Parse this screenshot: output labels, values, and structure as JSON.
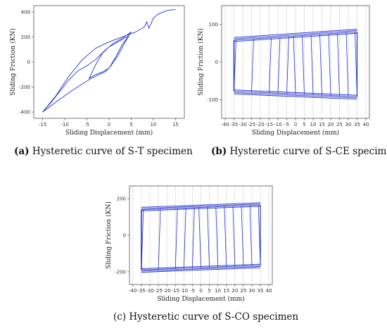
{
  "captions": [
    {
      "letter": "(a)",
      "text": " Hysteretic curve of S-T specimen"
    },
    {
      "letter": "(b)",
      "text": " Hysteretic curve of S-CE specimen."
    },
    {
      "letter": "",
      "text": "(c) Hysteretic curve of S-CO specimen"
    }
  ],
  "series_color": "#2233cc",
  "chart_data": [
    {
      "type": "line",
      "xlabel": "Sliding Displacement (mm)",
      "ylabel": "Sliding Friction (KN)",
      "xlim": [
        -17,
        17
      ],
      "ylim": [
        -450,
        450
      ],
      "xticks": [
        -15,
        -10,
        -5,
        0,
        5,
        10,
        15
      ],
      "yticks": [
        -400,
        -200,
        0,
        200,
        400
      ],
      "grid": false,
      "series": [
        {
          "x": [
            -15,
            -13,
            -11,
            -9,
            -7,
            -5,
            -3,
            -1,
            1,
            3,
            5,
            3.5,
            2,
            0,
            -1.5,
            -3,
            -4.5,
            -3,
            -1.5,
            0,
            1.5,
            3,
            4.5,
            3,
            1.5,
            0,
            -1,
            -4,
            -8,
            -12,
            -15
          ],
          "y": [
            -400,
            -320,
            -230,
            -140,
            -70,
            -30,
            20,
            90,
            150,
            190,
            240,
            150,
            50,
            -50,
            -80,
            -100,
            -130,
            -20,
            70,
            120,
            150,
            180,
            210,
            140,
            40,
            -50,
            -80,
            -130,
            -220,
            -320,
            -400
          ]
        },
        {
          "x": [
            -15,
            -12,
            -9,
            -6,
            -3,
            0,
            3,
            6,
            8,
            8.5,
            9,
            10,
            11,
            13,
            15
          ],
          "y": [
            -400,
            -270,
            -110,
            20,
            110,
            160,
            200,
            240,
            280,
            320,
            270,
            350,
            380,
            410,
            420
          ]
        }
      ]
    },
    {
      "type": "line",
      "xlabel": "Sliding Displacement (mm)",
      "ylabel": "Sliding Friction (KN)",
      "xlim": [
        -42,
        42
      ],
      "ylim": [
        -150,
        150
      ],
      "xticks": [
        -40,
        -35,
        -30,
        -25,
        -20,
        -15,
        -10,
        -5,
        0,
        5,
        10,
        15,
        20,
        25,
        30,
        35,
        40
      ],
      "yticks": [
        -100,
        0,
        100
      ],
      "grid": true,
      "reversals": [
        -35,
        -25,
        -15,
        -10,
        -5,
        0,
        5,
        10,
        15,
        20,
        25,
        30,
        35
      ],
      "upper_branch": {
        "x": [
          -35,
          35
        ],
        "y": [
          58,
          80
        ]
      },
      "lower_branch": {
        "x": [
          -35,
          35
        ],
        "y": [
          -78,
          -92
        ]
      }
    },
    {
      "type": "line",
      "xlabel": "Sliding Displacement (mm)",
      "ylabel": "Sliding Friction (KN)",
      "xlim": [
        -42,
        42
      ],
      "ylim": [
        -270,
        270
      ],
      "xticks": [
        -40,
        -35,
        -30,
        -25,
        -20,
        -15,
        -10,
        -5,
        0,
        5,
        10,
        15,
        20,
        25,
        30,
        35,
        40
      ],
      "yticks": [
        -200,
        0,
        200
      ],
      "grid": true,
      "reversals": [
        -35,
        -25,
        -15,
        -10,
        -5,
        0,
        5,
        10,
        15,
        20,
        25,
        30,
        35
      ],
      "upper_branch": {
        "x": [
          -35,
          35
        ],
        "y": [
          140,
          165
        ]
      },
      "lower_branch": {
        "x": [
          -35,
          35
        ],
        "y": [
          -190,
          -165
        ]
      }
    }
  ]
}
